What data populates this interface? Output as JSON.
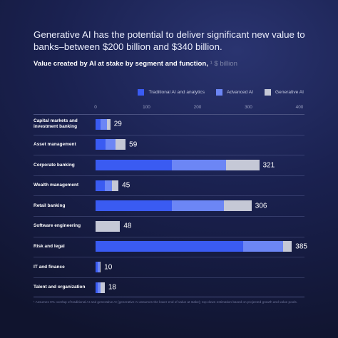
{
  "headline": "Generative AI has the potential to deliver significant new value to banks–between $200 billion and $340 billion.",
  "subtitle": "Value created by AI at stake by segment and function,",
  "subtitle_unit": "¹ $ billion",
  "colors": {
    "traditional": "#3a5bf2",
    "advanced": "#6c86f5",
    "generative": "#c5c8d6"
  },
  "footnote": "¹ Assumes 0% overlap of traditional AI and generative AI (generative AI assumes the lower end of value at stake); top-down estimation based on projected growth and value pools.",
  "chart_data": {
    "type": "bar",
    "orientation": "horizontal",
    "stacked": true,
    "xlim": [
      0,
      400
    ],
    "x_ticks": [
      0,
      100,
      200,
      300,
      400
    ],
    "legend_position": "top-right",
    "categories": [
      "Capital markets and investment banking",
      "Asset management",
      "Corporate banking",
      "Wealth management",
      "Retail banking",
      "Software engineering",
      "Risk and legal",
      "IT and finance",
      "Talent and organization"
    ],
    "series": [
      {
        "name": "Traditional AI and analytics",
        "values": [
          10,
          20,
          150,
          18,
          150,
          0,
          290,
          4,
          4
        ]
      },
      {
        "name": "Advanced AI",
        "values": [
          12,
          19,
          106,
          14,
          102,
          0,
          78,
          4,
          6
        ]
      },
      {
        "name": "Generative AI",
        "values": [
          7,
          20,
          65,
          13,
          54,
          48,
          17,
          2,
          8
        ]
      }
    ],
    "totals": [
      29,
      59,
      321,
      45,
      306,
      48,
      385,
      10,
      18
    ]
  }
}
